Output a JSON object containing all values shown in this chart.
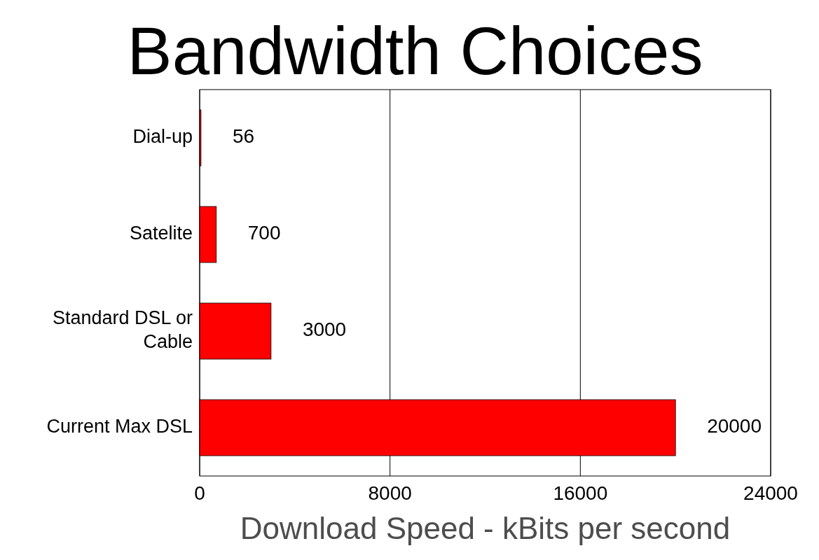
{
  "chart_data": {
    "type": "bar",
    "orientation": "horizontal",
    "title": "Bandwidth Choices",
    "xlabel": "Download Speed - kBits per second",
    "categories": [
      "Dial-up",
      "Satelite",
      "Standard DSL or Cable",
      "Current Max DSL"
    ],
    "values": [
      56,
      700,
      3000,
      20000
    ],
    "color": "#ff0000",
    "xlim": [
      0,
      24000
    ],
    "xticks": [
      0,
      8000,
      16000,
      24000
    ],
    "grid": "x",
    "data_labels": true
  }
}
